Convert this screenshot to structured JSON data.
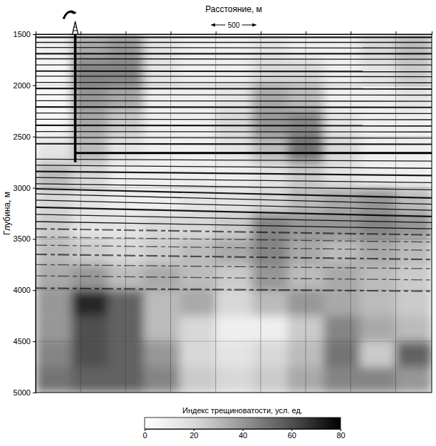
{
  "chart_data": {
    "type": "heatmap",
    "x_label": "Расстояние, м",
    "y_label": "Глубина, м",
    "xlim": [
      0,
      4400
    ],
    "ylim": [
      1500,
      5000
    ],
    "xticks": [
      500,
      1000,
      1500,
      2000,
      2500,
      3000,
      3500,
      4000
    ],
    "yticks": [
      1500,
      2000,
      2500,
      3000,
      3500,
      4000,
      4500,
      5000
    ],
    "grid": true,
    "tick_labels": "y",
    "scale_bar": 500,
    "well": {
      "x": 440,
      "bottom": 2750
    },
    "target_horizon": [
      2660,
      2660
    ],
    "horizons": {
      "depth_left": [
        1530,
        1580,
        1630,
        1690,
        1740,
        1800,
        1860,
        1910,
        1970,
        2030,
        2090,
        2150,
        2210,
        2270,
        2330,
        2390,
        2450,
        2510,
        2570,
        2720,
        2780,
        2840,
        2900,
        2960,
        3010,
        3060,
        3120,
        3190,
        3260,
        3330,
        3400,
        3480,
        3560,
        3650,
        3750,
        3860,
        3980
      ],
      "depth_right": [
        1530,
        1580,
        1635,
        1690,
        1745,
        1800,
        1865,
        1915,
        1975,
        2035,
        2095,
        2155,
        2215,
        2275,
        2335,
        2395,
        2455,
        2515,
        2575,
        2740,
        2810,
        2880,
        2950,
        3020,
        3100,
        3160,
        3220,
        3280,
        3340,
        3400,
        3460,
        3530,
        3610,
        3700,
        3790,
        3900,
        4010
      ]
    },
    "cells": {
      "x_edges": [
        0,
        400,
        800,
        1200,
        1600,
        2000,
        2400,
        2800,
        3200,
        3600,
        4000,
        4400
      ],
      "y_edges": [
        1500,
        1750,
        2000,
        2250,
        2500,
        2750,
        3000,
        3250,
        3500,
        3750,
        4000,
        4250,
        4500,
        4750,
        5000
      ],
      "values": [
        [
          10,
          35,
          40,
          15,
          10,
          10,
          15,
          10,
          10,
          20,
          30
        ],
        [
          5,
          45,
          45,
          15,
          10,
          10,
          20,
          20,
          10,
          15,
          25
        ],
        [
          5,
          40,
          35,
          10,
          10,
          15,
          35,
          30,
          10,
          10,
          15
        ],
        [
          5,
          35,
          25,
          10,
          10,
          20,
          40,
          45,
          15,
          10,
          10
        ],
        [
          15,
          30,
          15,
          10,
          10,
          15,
          30,
          50,
          20,
          10,
          10
        ],
        [
          30,
          20,
          10,
          10,
          10,
          10,
          15,
          25,
          15,
          10,
          10
        ],
        [
          20,
          15,
          10,
          10,
          15,
          15,
          20,
          30,
          35,
          40,
          30
        ],
        [
          25,
          15,
          15,
          20,
          20,
          25,
          45,
          40,
          40,
          45,
          40
        ],
        [
          30,
          25,
          20,
          25,
          30,
          35,
          45,
          35,
          30,
          35,
          30
        ],
        [
          35,
          40,
          30,
          35,
          30,
          25,
          40,
          30,
          35,
          30,
          25
        ],
        [
          40,
          70,
          55,
          30,
          35,
          20,
          30,
          40,
          35,
          30,
          25
        ],
        [
          40,
          60,
          55,
          30,
          20,
          10,
          10,
          25,
          45,
          35,
          30
        ],
        [
          45,
          60,
          55,
          40,
          20,
          15,
          20,
          30,
          50,
          25,
          55
        ],
        [
          50,
          55,
          55,
          45,
          25,
          20,
          25,
          35,
          45,
          45,
          40
        ]
      ]
    },
    "colorbar": {
      "label": "Индекс трещиноватости, усл. ед.",
      "range": [
        0,
        80
      ],
      "ticks": [
        0,
        20,
        40,
        60,
        80
      ]
    }
  }
}
